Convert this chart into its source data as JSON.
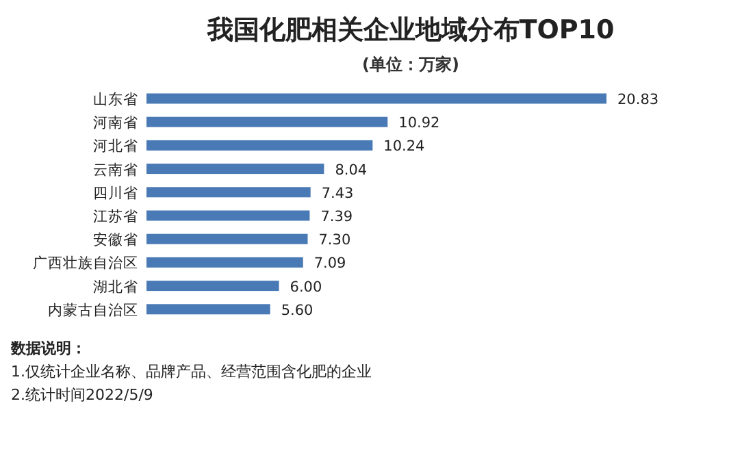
{
  "chart_data": {
    "type": "bar",
    "orientation": "horizontal",
    "title": "我国化肥相关企业地域分布TOP10",
    "subtitle": "(单位：万家)",
    "categories": [
      "山东省",
      "河南省",
      "河北省",
      "云南省",
      "四川省",
      "江苏省",
      "安徽省",
      "广西壮族自治区",
      "湖北省",
      "内蒙古自治区"
    ],
    "values": [
      20.83,
      10.92,
      10.24,
      8.04,
      7.43,
      7.39,
      7.3,
      7.09,
      6.0,
      5.6
    ],
    "value_labels": [
      "20.83",
      "10.92",
      "10.24",
      "8.04",
      "7.43",
      "7.39",
      "7.30",
      "7.09",
      "6.00",
      "5.60"
    ],
    "color": "#4a7ab5",
    "annotations": [
      "数据说明：",
      "1.仅统计企业名称、品牌产品、经营范围含化肥的企业",
      "2.统计时间2022/5/9"
    ]
  }
}
